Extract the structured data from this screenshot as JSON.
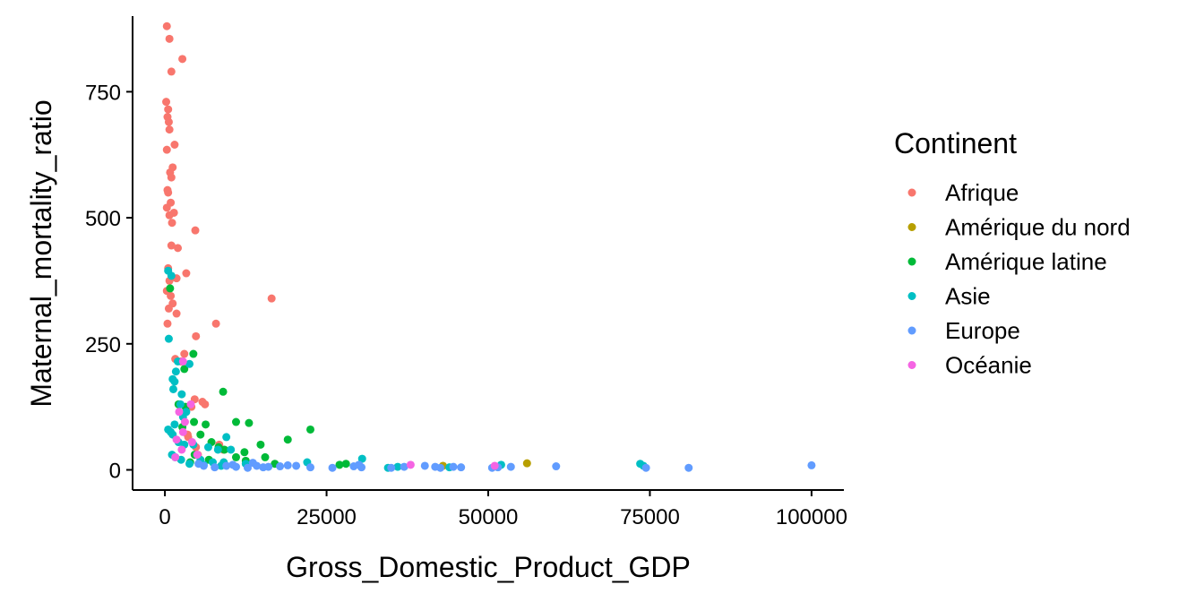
{
  "chart_data": {
    "type": "scatter",
    "title": "",
    "xlabel": "Gross_Domestic_Product_GDP",
    "ylabel": "Maternal_mortality_ratio",
    "xlim": [
      -5000,
      105000
    ],
    "ylim": [
      -40,
      900
    ],
    "xticks": [
      0,
      25000,
      50000,
      75000,
      100000
    ],
    "yticks": [
      0,
      250,
      500,
      750
    ],
    "grid": false,
    "legend": {
      "title": "Continent",
      "placement": "right"
    },
    "series": [
      {
        "name": "Afrique",
        "color": "#F8766D",
        "points": [
          [
            300,
            880
          ],
          [
            700,
            855
          ],
          [
            2700,
            815
          ],
          [
            1000,
            790
          ],
          [
            200,
            730
          ],
          [
            500,
            715
          ],
          [
            400,
            700
          ],
          [
            600,
            690
          ],
          [
            700,
            675
          ],
          [
            1500,
            645
          ],
          [
            300,
            635
          ],
          [
            1200,
            600
          ],
          [
            800,
            590
          ],
          [
            1000,
            580
          ],
          [
            400,
            555
          ],
          [
            500,
            550
          ],
          [
            900,
            530
          ],
          [
            300,
            520
          ],
          [
            700,
            505
          ],
          [
            1400,
            510
          ],
          [
            1100,
            490
          ],
          [
            4700,
            475
          ],
          [
            1000,
            445
          ],
          [
            2000,
            440
          ],
          [
            500,
            400
          ],
          [
            3300,
            390
          ],
          [
            1800,
            380
          ],
          [
            700,
            375
          ],
          [
            300,
            355
          ],
          [
            900,
            345
          ],
          [
            16500,
            340
          ],
          [
            1200,
            330
          ],
          [
            600,
            320
          ],
          [
            1800,
            310
          ],
          [
            7900,
            290
          ],
          [
            400,
            290
          ],
          [
            4800,
            265
          ],
          [
            3000,
            230
          ],
          [
            1600,
            220
          ],
          [
            2500,
            215
          ],
          [
            4600,
            140
          ],
          [
            6200,
            130
          ],
          [
            5800,
            135
          ],
          [
            4100,
            125
          ],
          [
            3500,
            70
          ],
          [
            8400,
            50
          ],
          [
            4800,
            45
          ],
          [
            3600,
            65
          ],
          [
            5100,
            30
          ],
          [
            9000,
            40
          ]
        ]
      },
      {
        "name": "Amérique du nord",
        "color": "#B79F00",
        "points": [
          [
            56000,
            13
          ],
          [
            43000,
            8
          ]
        ]
      },
      {
        "name": "Amérique latine",
        "color": "#00BA38",
        "points": [
          [
            800,
            360
          ],
          [
            4400,
            230
          ],
          [
            3000,
            200
          ],
          [
            9000,
            155
          ],
          [
            2100,
            130
          ],
          [
            3200,
            125
          ],
          [
            4500,
            95
          ],
          [
            6300,
            90
          ],
          [
            11000,
            95
          ],
          [
            13000,
            93
          ],
          [
            2700,
            85
          ],
          [
            5500,
            70
          ],
          [
            22500,
            80
          ],
          [
            19000,
            60
          ],
          [
            7200,
            55
          ],
          [
            14800,
            50
          ],
          [
            8300,
            45
          ],
          [
            9200,
            40
          ],
          [
            12300,
            35
          ],
          [
            4600,
            30
          ],
          [
            11000,
            25
          ],
          [
            15500,
            25
          ],
          [
            6800,
            20
          ],
          [
            3900,
            15
          ],
          [
            28000,
            12
          ],
          [
            27000,
            10
          ],
          [
            17000,
            12
          ],
          [
            12500,
            18
          ]
        ]
      },
      {
        "name": "Asie",
        "color": "#00BFC4",
        "points": [
          [
            500,
            395
          ],
          [
            1000,
            385
          ],
          [
            600,
            260
          ],
          [
            2000,
            215
          ],
          [
            3800,
            210
          ],
          [
            1700,
            195
          ],
          [
            1200,
            180
          ],
          [
            1500,
            175
          ],
          [
            1300,
            160
          ],
          [
            2600,
            150
          ],
          [
            2400,
            130
          ],
          [
            3300,
            115
          ],
          [
            2800,
            105
          ],
          [
            1500,
            90
          ],
          [
            500,
            80
          ],
          [
            900,
            75
          ],
          [
            1200,
            70
          ],
          [
            9500,
            65
          ],
          [
            2100,
            55
          ],
          [
            3000,
            50
          ],
          [
            4400,
            50
          ],
          [
            6700,
            45
          ],
          [
            8200,
            40
          ],
          [
            10200,
            40
          ],
          [
            1100,
            30
          ],
          [
            1600,
            25
          ],
          [
            5500,
            20
          ],
          [
            7400,
            15
          ],
          [
            9100,
            15
          ],
          [
            12500,
            12
          ],
          [
            22000,
            15
          ],
          [
            30500,
            22
          ],
          [
            52000,
            10
          ],
          [
            73500,
            12
          ],
          [
            74000,
            8
          ],
          [
            36000,
            6
          ],
          [
            44000,
            5
          ],
          [
            34500,
            4
          ],
          [
            6000,
            10
          ],
          [
            8700,
            8
          ],
          [
            3800,
            12
          ],
          [
            2500,
            20
          ]
        ]
      },
      {
        "name": "Europe",
        "color": "#619CFF",
        "points": [
          [
            9500,
            8
          ],
          [
            10500,
            10
          ],
          [
            11000,
            6
          ],
          [
            12800,
            4
          ],
          [
            13600,
            14
          ],
          [
            14200,
            8
          ],
          [
            15200,
            5
          ],
          [
            16000,
            6
          ],
          [
            17800,
            7
          ],
          [
            19000,
            9
          ],
          [
            20300,
            8
          ],
          [
            22500,
            5
          ],
          [
            25900,
            4
          ],
          [
            29200,
            7
          ],
          [
            30400,
            5
          ],
          [
            35000,
            4
          ],
          [
            37000,
            6
          ],
          [
            40200,
            8
          ],
          [
            41800,
            6
          ],
          [
            42600,
            4
          ],
          [
            44600,
            6
          ],
          [
            50600,
            4
          ],
          [
            51500,
            5
          ],
          [
            53500,
            6
          ],
          [
            60500,
            7
          ],
          [
            74400,
            4
          ],
          [
            81000,
            4
          ],
          [
            100000,
            9
          ],
          [
            45800,
            5
          ],
          [
            7700,
            5
          ],
          [
            6000,
            8
          ],
          [
            5200,
            12
          ],
          [
            30000,
            10
          ]
        ]
      },
      {
        "name": "Océanie",
        "color": "#F564E3",
        "points": [
          [
            2800,
            215
          ],
          [
            4000,
            130
          ],
          [
            2200,
            115
          ],
          [
            3100,
            95
          ],
          [
            2800,
            75
          ],
          [
            1800,
            60
          ],
          [
            4200,
            55
          ],
          [
            5000,
            30
          ],
          [
            38000,
            10
          ],
          [
            51000,
            8
          ],
          [
            2600,
            40
          ],
          [
            1600,
            25
          ]
        ]
      }
    ]
  }
}
